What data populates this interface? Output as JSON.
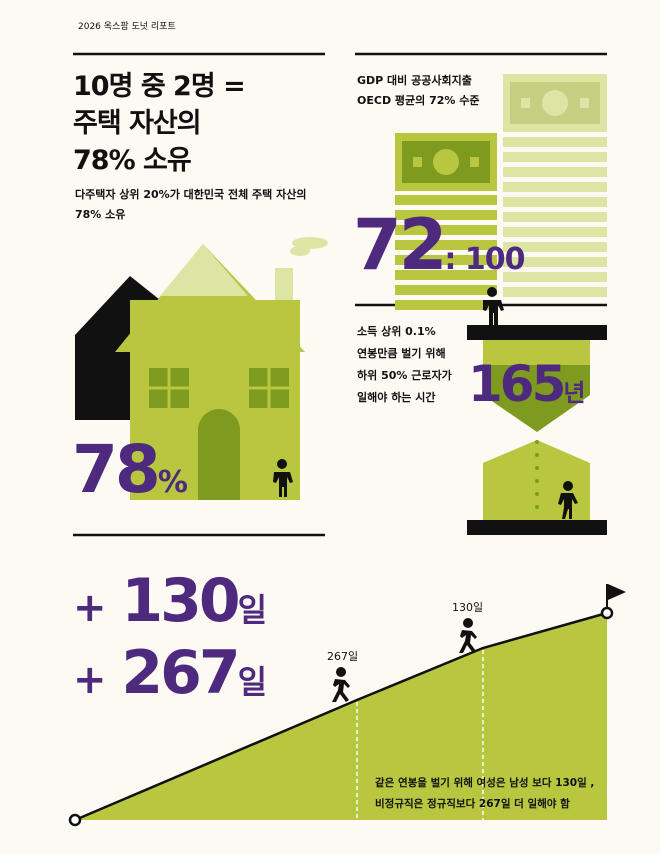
{
  "header": {
    "report_title": "2026 옥스팜 도넛 리포트"
  },
  "housing": {
    "title_lines": [
      "10명 중 2명 =",
      "주택 자산의",
      "78% 소유"
    ],
    "subtitle_lines": [
      "다주택자 상위 20%가 대한민국 전체 주택 자산의",
      "78% 소유"
    ],
    "big_number": "78",
    "big_unit": "%",
    "share_percent": 78
  },
  "social_spending": {
    "caption_lines": [
      "GDP 대비 공공사회지출",
      "OECD 평균의 72% 수준"
    ],
    "big_number": "72",
    "ratio_suffix": ": 100"
  },
  "income": {
    "caption_lines": [
      "소득 상위 0.1%",
      "연봉만큼 벌기 위해",
      "하위 50% 근로자가",
      "일해야 하는 시간"
    ],
    "big_number": "165",
    "big_unit": "년"
  },
  "work_days": {
    "line1_prefix": "+",
    "line1_value": "130",
    "line1_unit": "일",
    "line2_prefix": "+",
    "line2_value": "267",
    "line2_unit": "일",
    "label_267": "267일",
    "label_130": "130일",
    "caption_lines": [
      "같은 연봉을 벌기 위해 여성은 남성 보다 130일 ,",
      "비정규직은 정규직보다 267일 더 일해야 함"
    ]
  },
  "colors": {
    "background": "#fdf9f3",
    "lime": "#b9c640",
    "olive": "#7e9a1f",
    "pale": "#dde5a4",
    "purple": "#4e2a7f",
    "black": "#111111"
  }
}
